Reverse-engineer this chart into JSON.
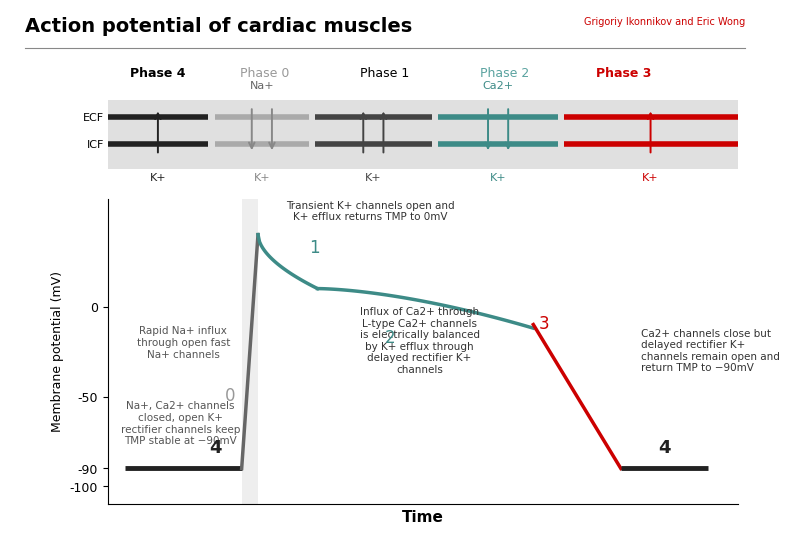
{
  "title": "Action potential of cardiac muscles",
  "subtitle": "Grigoriy Ikonnikov and Eric Wong",
  "xlabel": "Time",
  "ylabel": "Membrane potential (mV)",
  "yticks": [
    -100,
    -90,
    -50,
    0
  ],
  "ylim": [
    -110,
    60
  ],
  "xlim": [
    -0.3,
    10.5
  ],
  "phase_labels": [
    "Phase 4",
    "Phase 0",
    "Phase 1",
    "Phase 2",
    "Phase 3"
  ],
  "phase_colors": [
    "#000000",
    "#999999",
    "#000000",
    "#5ba3a0",
    "#cc0000"
  ],
  "phase_label_fontsize": 9,
  "ecf_label": "ECF",
  "icf_label": "ICF",
  "na_label": "Na+",
  "ca_label": "Ca2+",
  "k_label": "K+",
  "phase0_note": "Rapid Na+ influx\nthrough open fast\nNa+ channels",
  "phase1_note": "Transient K+ channels open and\nK+ efflux returns TMP to 0mV",
  "phase2_note": "Influx of Ca2+ through\nL-type Ca2+ channels\nis electrically balanced\nby K+ efflux through\ndelayed rectifier K+\nchannels",
  "phase3_note": "Ca2+ channels close but\ndelayed rectifier K+\nchannels remain open and\nreturn TMP to −90mV",
  "phase4_left_note": "Na+, Ca2+ channels\nclosed, open K+\nrectifier channels keep\nTMP stable at −90mV",
  "color_black": "#222222",
  "color_gray": "#999999",
  "color_teal": "#3d8b87",
  "color_red": "#cc0000",
  "color_bg": "#e0e0e0",
  "color_phase0_shade": "#e8e8e8"
}
